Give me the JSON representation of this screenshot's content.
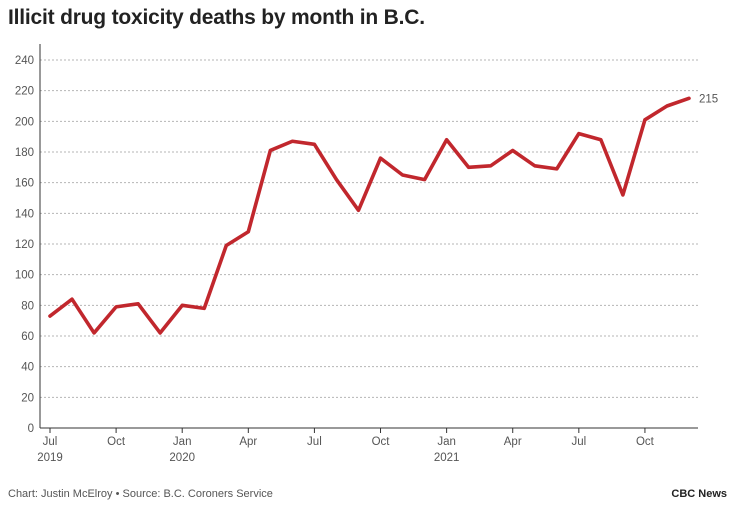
{
  "chart_data": {
    "type": "line",
    "title": "Illicit drug toxicity deaths by month in B.C.",
    "xlabel": "",
    "ylabel": "",
    "ylim": [
      0,
      240
    ],
    "yticks": [
      "0",
      "20",
      "40",
      "60",
      "80",
      "100",
      "120",
      "140",
      "160",
      "180",
      "200",
      "220",
      "240"
    ],
    "x": [
      "2019-07",
      "2019-08",
      "2019-09",
      "2019-10",
      "2019-11",
      "2019-12",
      "2020-01",
      "2020-02",
      "2020-03",
      "2020-04",
      "2020-05",
      "2020-06",
      "2020-07",
      "2020-08",
      "2020-09",
      "2020-10",
      "2020-11",
      "2020-12",
      "2021-01",
      "2021-02",
      "2021-03",
      "2021-04",
      "2021-05",
      "2021-06",
      "2021-07",
      "2021-08",
      "2021-09",
      "2021-10",
      "2021-11",
      "2021-12"
    ],
    "xticks": [
      {
        "index": 0,
        "label": "Jul",
        "year": "2019"
      },
      {
        "index": 3,
        "label": "Oct",
        "year": ""
      },
      {
        "index": 6,
        "label": "Jan",
        "year": "2020"
      },
      {
        "index": 9,
        "label": "Apr",
        "year": ""
      },
      {
        "index": 12,
        "label": "Jul",
        "year": ""
      },
      {
        "index": 15,
        "label": "Oct",
        "year": ""
      },
      {
        "index": 18,
        "label": "Jan",
        "year": "2021"
      },
      {
        "index": 21,
        "label": "Apr",
        "year": ""
      },
      {
        "index": 24,
        "label": "Jul",
        "year": ""
      },
      {
        "index": 27,
        "label": "Oct",
        "year": ""
      }
    ],
    "series": [
      {
        "name": "Deaths",
        "color": "#c1272d",
        "values": [
          73,
          84,
          62,
          79,
          81,
          62,
          80,
          78,
          119,
          128,
          181,
          187,
          185,
          162,
          142,
          176,
          165,
          162,
          188,
          170,
          171,
          181,
          171,
          169,
          192,
          188,
          152,
          201,
          210,
          215
        ]
      }
    ],
    "end_label": "215",
    "grid": true
  },
  "footer": {
    "credit": "Chart: Justin McElroy • Source: B.C. Coroners Service",
    "brand": "CBC News"
  },
  "colors": {
    "line": "#c1272d",
    "grid": "#b5b5b5",
    "axis": "#333333"
  }
}
